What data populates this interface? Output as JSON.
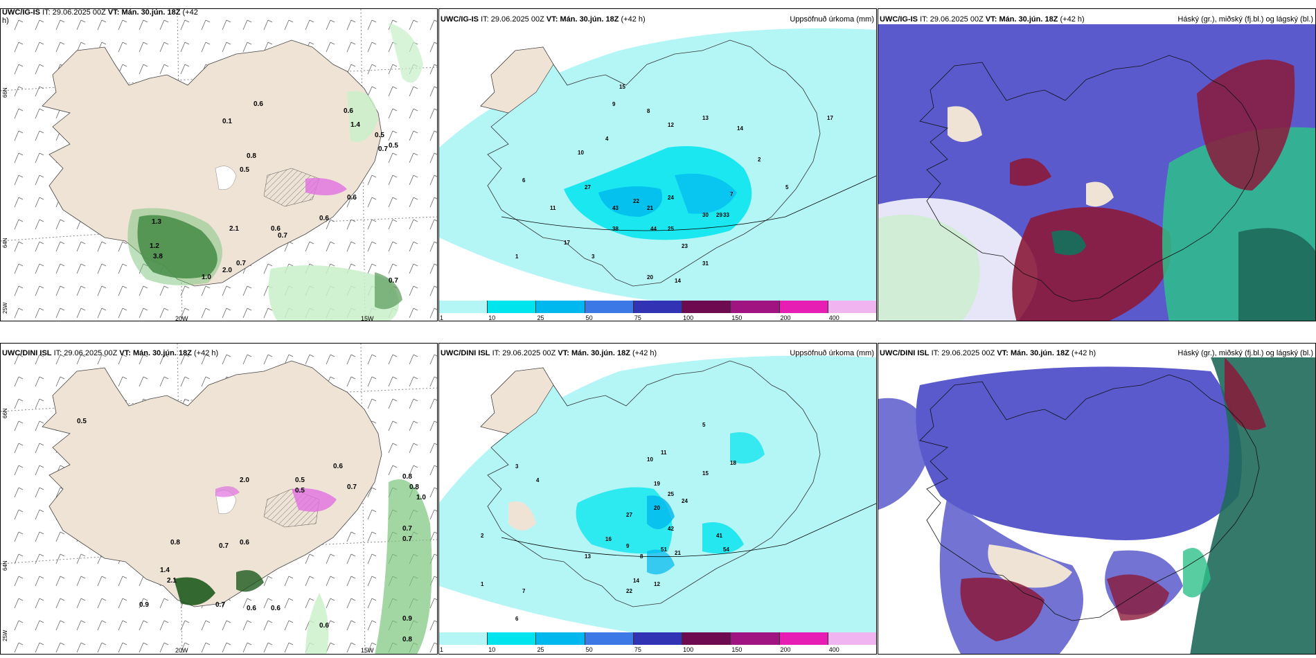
{
  "panels": {
    "p1": {
      "model": "UWC/IG-IS",
      "it_label": "IT:",
      "it_value": "29.06.2025 00Z",
      "vt_label": "VT:",
      "vt_value": "Mán. 30.jún. 18Z",
      "lead": "(+42",
      "lead_cont": "h)",
      "lon_labels": [
        "20W",
        "15W"
      ],
      "lat_labels": [
        "66N",
        "64N",
        "25W"
      ],
      "precip_labels": [
        "0.6",
        "0.1",
        "0.5",
        "0.8",
        "0.6",
        "1.4",
        "0.5",
        "0.7",
        "0.6",
        "0.6",
        "1.3",
        "1.2",
        "3.8",
        "2.1",
        "0.7",
        "0.6",
        "0.7",
        "2.0",
        "1.0",
        "0.7",
        "0.5"
      ]
    },
    "p2": {
      "model": "UWC/IG-IS",
      "it_label": "IT:",
      "it_value": "29.06.2025 00Z",
      "vt_label": "VT:",
      "vt_value": "Mán. 30.jún. 18Z",
      "lead": "(+42 h)",
      "right_title": "Uppsöfnuð úrkoma (mm)",
      "colorbar": [
        "1",
        "10",
        "25",
        "50",
        "75",
        "100",
        "150",
        "200",
        "400"
      ],
      "colorbar_colors": [
        "#b4f5f5",
        "#00e4ee",
        "#00b8ee",
        "#3c78e6",
        "#3232b4",
        "#6e0a50",
        "#a01482",
        "#e61eb4",
        "#f0b4f0"
      ],
      "numbers": [
        "15",
        "9",
        "8",
        "12",
        "13",
        "14",
        "27",
        "43",
        "22",
        "24",
        "21",
        "38",
        "44",
        "25",
        "30",
        "17",
        "29",
        "33",
        "31",
        "23",
        "20",
        "14",
        "17",
        "6",
        "10",
        "11",
        "4",
        "3",
        "2",
        "5",
        "7",
        "1"
      ]
    },
    "p3": {
      "model": "UWC/IG-IS",
      "it_label": "IT:",
      "it_value": "29.06.2025 00Z",
      "vt_label": "VT:",
      "vt_value": "Mán. 30.jún. 18Z",
      "lead": "(+42 h)",
      "right_title": "Háský (gr.), miðský (fj.bl.) og lágský (bl.)"
    },
    "p4": {
      "model": "UWC/DINI ISL",
      "it_label": "IT:",
      "it_value": "29.06.2025 00Z",
      "vt_label": "VT:",
      "vt_value": "Mán. 30.jún. 18Z",
      "lead": "(+42 h)",
      "lon_labels": [
        "20W",
        "15W"
      ],
      "lat_labels": [
        "66N",
        "64N",
        "25W"
      ],
      "precip_labels": [
        "0.5",
        "0.5",
        "2.0",
        "0.5",
        "0.6",
        "0.7",
        "0.8",
        "1.0",
        "0.7",
        "0.7",
        "0.8",
        "0.8",
        "1.4",
        "2.1",
        "0.7",
        "0.6",
        "0.7",
        "0.6",
        "0.6",
        "0.9",
        "0.9",
        "0.8",
        "0.6"
      ]
    },
    "p5": {
      "model": "UWC/DINI ISL",
      "it_label": "IT:",
      "it_value": "29.06.2025 00Z",
      "vt_label": "VT:",
      "vt_value": "Mán. 30.jún. 18Z",
      "lead": "(+42 h)",
      "right_title": "Uppsöfnuð úrkoma (mm)",
      "colorbar": [
        "1",
        "10",
        "25",
        "50",
        "75",
        "100",
        "150",
        "200",
        "400"
      ],
      "colorbar_colors": [
        "#b4f5f5",
        "#00e4ee",
        "#00b8ee",
        "#3c78e6",
        "#3232b4",
        "#6e0a50",
        "#a01482",
        "#e61eb4",
        "#f0b4f0"
      ],
      "numbers": [
        "19",
        "25",
        "20",
        "42",
        "51",
        "24",
        "21",
        "54",
        "41",
        "12",
        "18",
        "15",
        "10",
        "11",
        "8",
        "9",
        "16",
        "27",
        "13",
        "22",
        "14",
        "6",
        "7",
        "5",
        "4",
        "3",
        "2",
        "1"
      ]
    },
    "p6": {
      "model": "UWC/DINI ISL",
      "it_label": "IT:",
      "it_value": "29.06.2025 00Z",
      "vt_label": "VT:",
      "vt_value": "Mán. 30.jún. 18Z",
      "lead": "(+42 h)",
      "right_title": "Háský (gr.), miðský (fj.bl.) og lágský (bl.)"
    }
  },
  "colors": {
    "land": "#efe3d6",
    "sea": "#ffffff",
    "precip_green_light": "#c8f0c8",
    "precip_green_dark": "#1e5a1e",
    "snow_pink": "#e070e0",
    "cloud_low": "#5a5acd",
    "cloud_mid": "#8b1a3a",
    "cloud_high": "#2ec08a",
    "cloud_high_dark": "#1e6a5a",
    "precip_cyan": "#b4f5f5"
  }
}
